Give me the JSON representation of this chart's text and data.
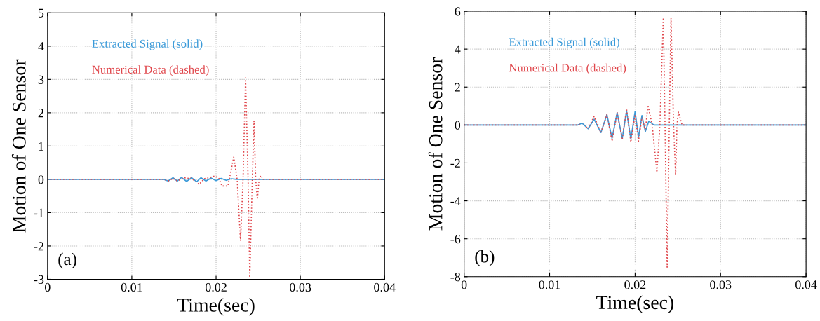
{
  "chart_data": [
    {
      "type": "line",
      "xlabel": "Time(sec)",
      "ylabel": "Motion of One Sensor",
      "xlim": [
        0,
        0.04
      ],
      "ylim": [
        -3,
        5
      ],
      "xticks": [
        0,
        0.01,
        0.02,
        0.03,
        0.04
      ],
      "yticks": [
        -3,
        -2,
        -1,
        0,
        1,
        2,
        3,
        4,
        5
      ],
      "grid": true,
      "legend": "top left",
      "annotations": [
        "(a)"
      ],
      "series": [
        {
          "name": "Extracted Signal (solid)",
          "color": "#3a9ad9",
          "line_style": "solid",
          "x": [
            0,
            0.012,
            0.0138,
            0.0143,
            0.0149,
            0.0154,
            0.0159,
            0.0165,
            0.0171,
            0.0177,
            0.0182,
            0.0188,
            0.0194,
            0.02,
            0.0206,
            0.0212,
            0.0218,
            0.0224,
            0.04
          ],
          "values": [
            0,
            0,
            0,
            -0.05,
            0.05,
            -0.05,
            0.06,
            -0.06,
            0.05,
            -0.07,
            0.05,
            -0.05,
            0.04,
            -0.04,
            0.03,
            -0.03,
            0.02,
            0,
            0
          ]
        },
        {
          "name": "Numerical Data (dashed)",
          "color": "#e0474c",
          "line_style": "dotted",
          "x": [
            0,
            0.012,
            0.0138,
            0.0143,
            0.0149,
            0.0154,
            0.0162,
            0.0167,
            0.017,
            0.0175,
            0.018,
            0.0186,
            0.0192,
            0.0198,
            0.0203,
            0.0207,
            0.0214,
            0.0221,
            0.0225,
            0.0229,
            0.0232,
            0.0235,
            0.0238,
            0.024,
            0.0243,
            0.0245,
            0.0247,
            0.0249,
            0.0251,
            0.0253,
            0.0256,
            0.04
          ],
          "values": [
            0,
            0,
            0,
            -0.05,
            0.03,
            -0.05,
            0.05,
            0.03,
            0.05,
            -0.05,
            -0.15,
            0.02,
            0.05,
            0.1,
            0.05,
            -0.2,
            -0.2,
            0.67,
            0,
            -1.85,
            0,
            3.05,
            0,
            -2.95,
            0,
            1.75,
            0,
            -0.6,
            0,
            0.12,
            0,
            0
          ]
        }
      ]
    },
    {
      "type": "line",
      "xlabel": "Time(sec)",
      "ylabel": "Motion of One Sensor",
      "xlim": [
        0,
        0.04
      ],
      "ylim": [
        -8,
        6
      ],
      "xticks": [
        0,
        0.01,
        0.02,
        0.03,
        0.04
      ],
      "yticks": [
        -8,
        -6,
        -4,
        -2,
        0,
        2,
        4,
        6
      ],
      "grid": true,
      "legend": "top left",
      "annotations": [
        "(b)"
      ],
      "series": [
        {
          "name": "Extracted Signal (solid)",
          "color": "#3a9ad9",
          "line_style": "solid",
          "x": [
            0,
            0.012,
            0.0133,
            0.0138,
            0.0145,
            0.0152,
            0.016,
            0.0167,
            0.0173,
            0.0179,
            0.0185,
            0.019,
            0.0195,
            0.02,
            0.0204,
            0.0208,
            0.0212,
            0.0216,
            0.0222,
            0.04
          ],
          "values": [
            0,
            0,
            0,
            0.1,
            -0.2,
            0.3,
            -0.4,
            0.55,
            -0.7,
            0.65,
            -0.7,
            0.75,
            -0.75,
            0.72,
            -0.65,
            0.5,
            -0.35,
            0.2,
            0,
            0
          ]
        },
        {
          "name": "Numerical Data (dashed)",
          "color": "#e0474c",
          "line_style": "dotted",
          "x": [
            0,
            0.012,
            0.0133,
            0.0138,
            0.0145,
            0.0152,
            0.016,
            0.0167,
            0.0173,
            0.0179,
            0.0185,
            0.019,
            0.0195,
            0.02,
            0.0204,
            0.0208,
            0.0212,
            0.0215,
            0.022,
            0.02255,
            0.0229,
            0.0233,
            0.0235,
            0.02375,
            0.024,
            0.0242,
            0.0245,
            0.02474,
            0.0249,
            0.02507,
            0.0255,
            0.04
          ],
          "values": [
            0,
            0,
            0,
            0.1,
            -0.2,
            0.45,
            -0.4,
            0.55,
            -0.85,
            0.65,
            -0.75,
            0.85,
            -0.9,
            0.55,
            -0.85,
            0.4,
            -0.3,
            1.05,
            0,
            -2.5,
            0,
            5.66,
            0,
            -7.5,
            0,
            5.66,
            0,
            -2.65,
            0,
            0.68,
            0,
            0
          ]
        }
      ]
    }
  ]
}
